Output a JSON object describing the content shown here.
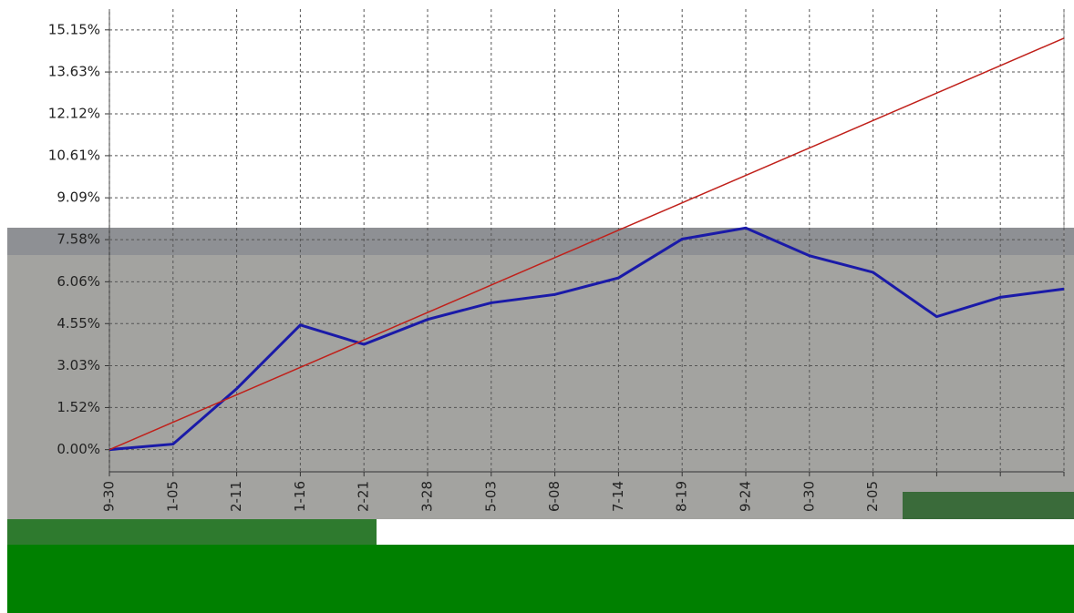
{
  "chart_data": {
    "type": "line",
    "categories": [
      "9-30",
      "1-05",
      "2-11",
      "1-16",
      "2-21",
      "3-28",
      "5-03",
      "6-08",
      "7-14",
      "8-19",
      "9-24",
      "0-30",
      "2-05",
      null,
      null,
      null
    ],
    "series": [
      {
        "color": "#1a1aa8",
        "values": [
          0,
          0.2,
          2.2,
          4.5,
          3.8,
          4.7,
          5.3,
          5.6,
          6.2,
          7.6,
          8.0,
          7.0,
          6.4,
          4.8,
          5.5,
          5.8
        ]
      },
      {
        "color": "#c0201a",
        "values": [
          0,
          0.99,
          1.98,
          2.97,
          3.96,
          4.95,
          5.94,
          6.93,
          7.92,
          8.91,
          9.9,
          10.89,
          11.88,
          12.87,
          13.86,
          14.85
        ]
      }
    ],
    "ylim": [
      -0.8,
      15.9
    ],
    "yticks": [
      {
        "value": 0,
        "label": "0.00%"
      },
      {
        "value": 1.52,
        "label": "1.52%"
      },
      {
        "value": 3.03,
        "label": "3.03%"
      },
      {
        "value": 4.55,
        "label": "4.55%"
      },
      {
        "value": 6.06,
        "label": "6.06%"
      },
      {
        "value": 7.58,
        "label": "7.58%"
      },
      {
        "value": 9.09,
        "label": "9.09%"
      },
      {
        "value": 10.61,
        "label": "10.61%"
      },
      {
        "value": 12.12,
        "label": "12.12%"
      },
      {
        "value": 13.63,
        "label": "13.63%"
      },
      {
        "value": 15.15,
        "label": "15.15%"
      }
    ],
    "grid": true
  }
}
